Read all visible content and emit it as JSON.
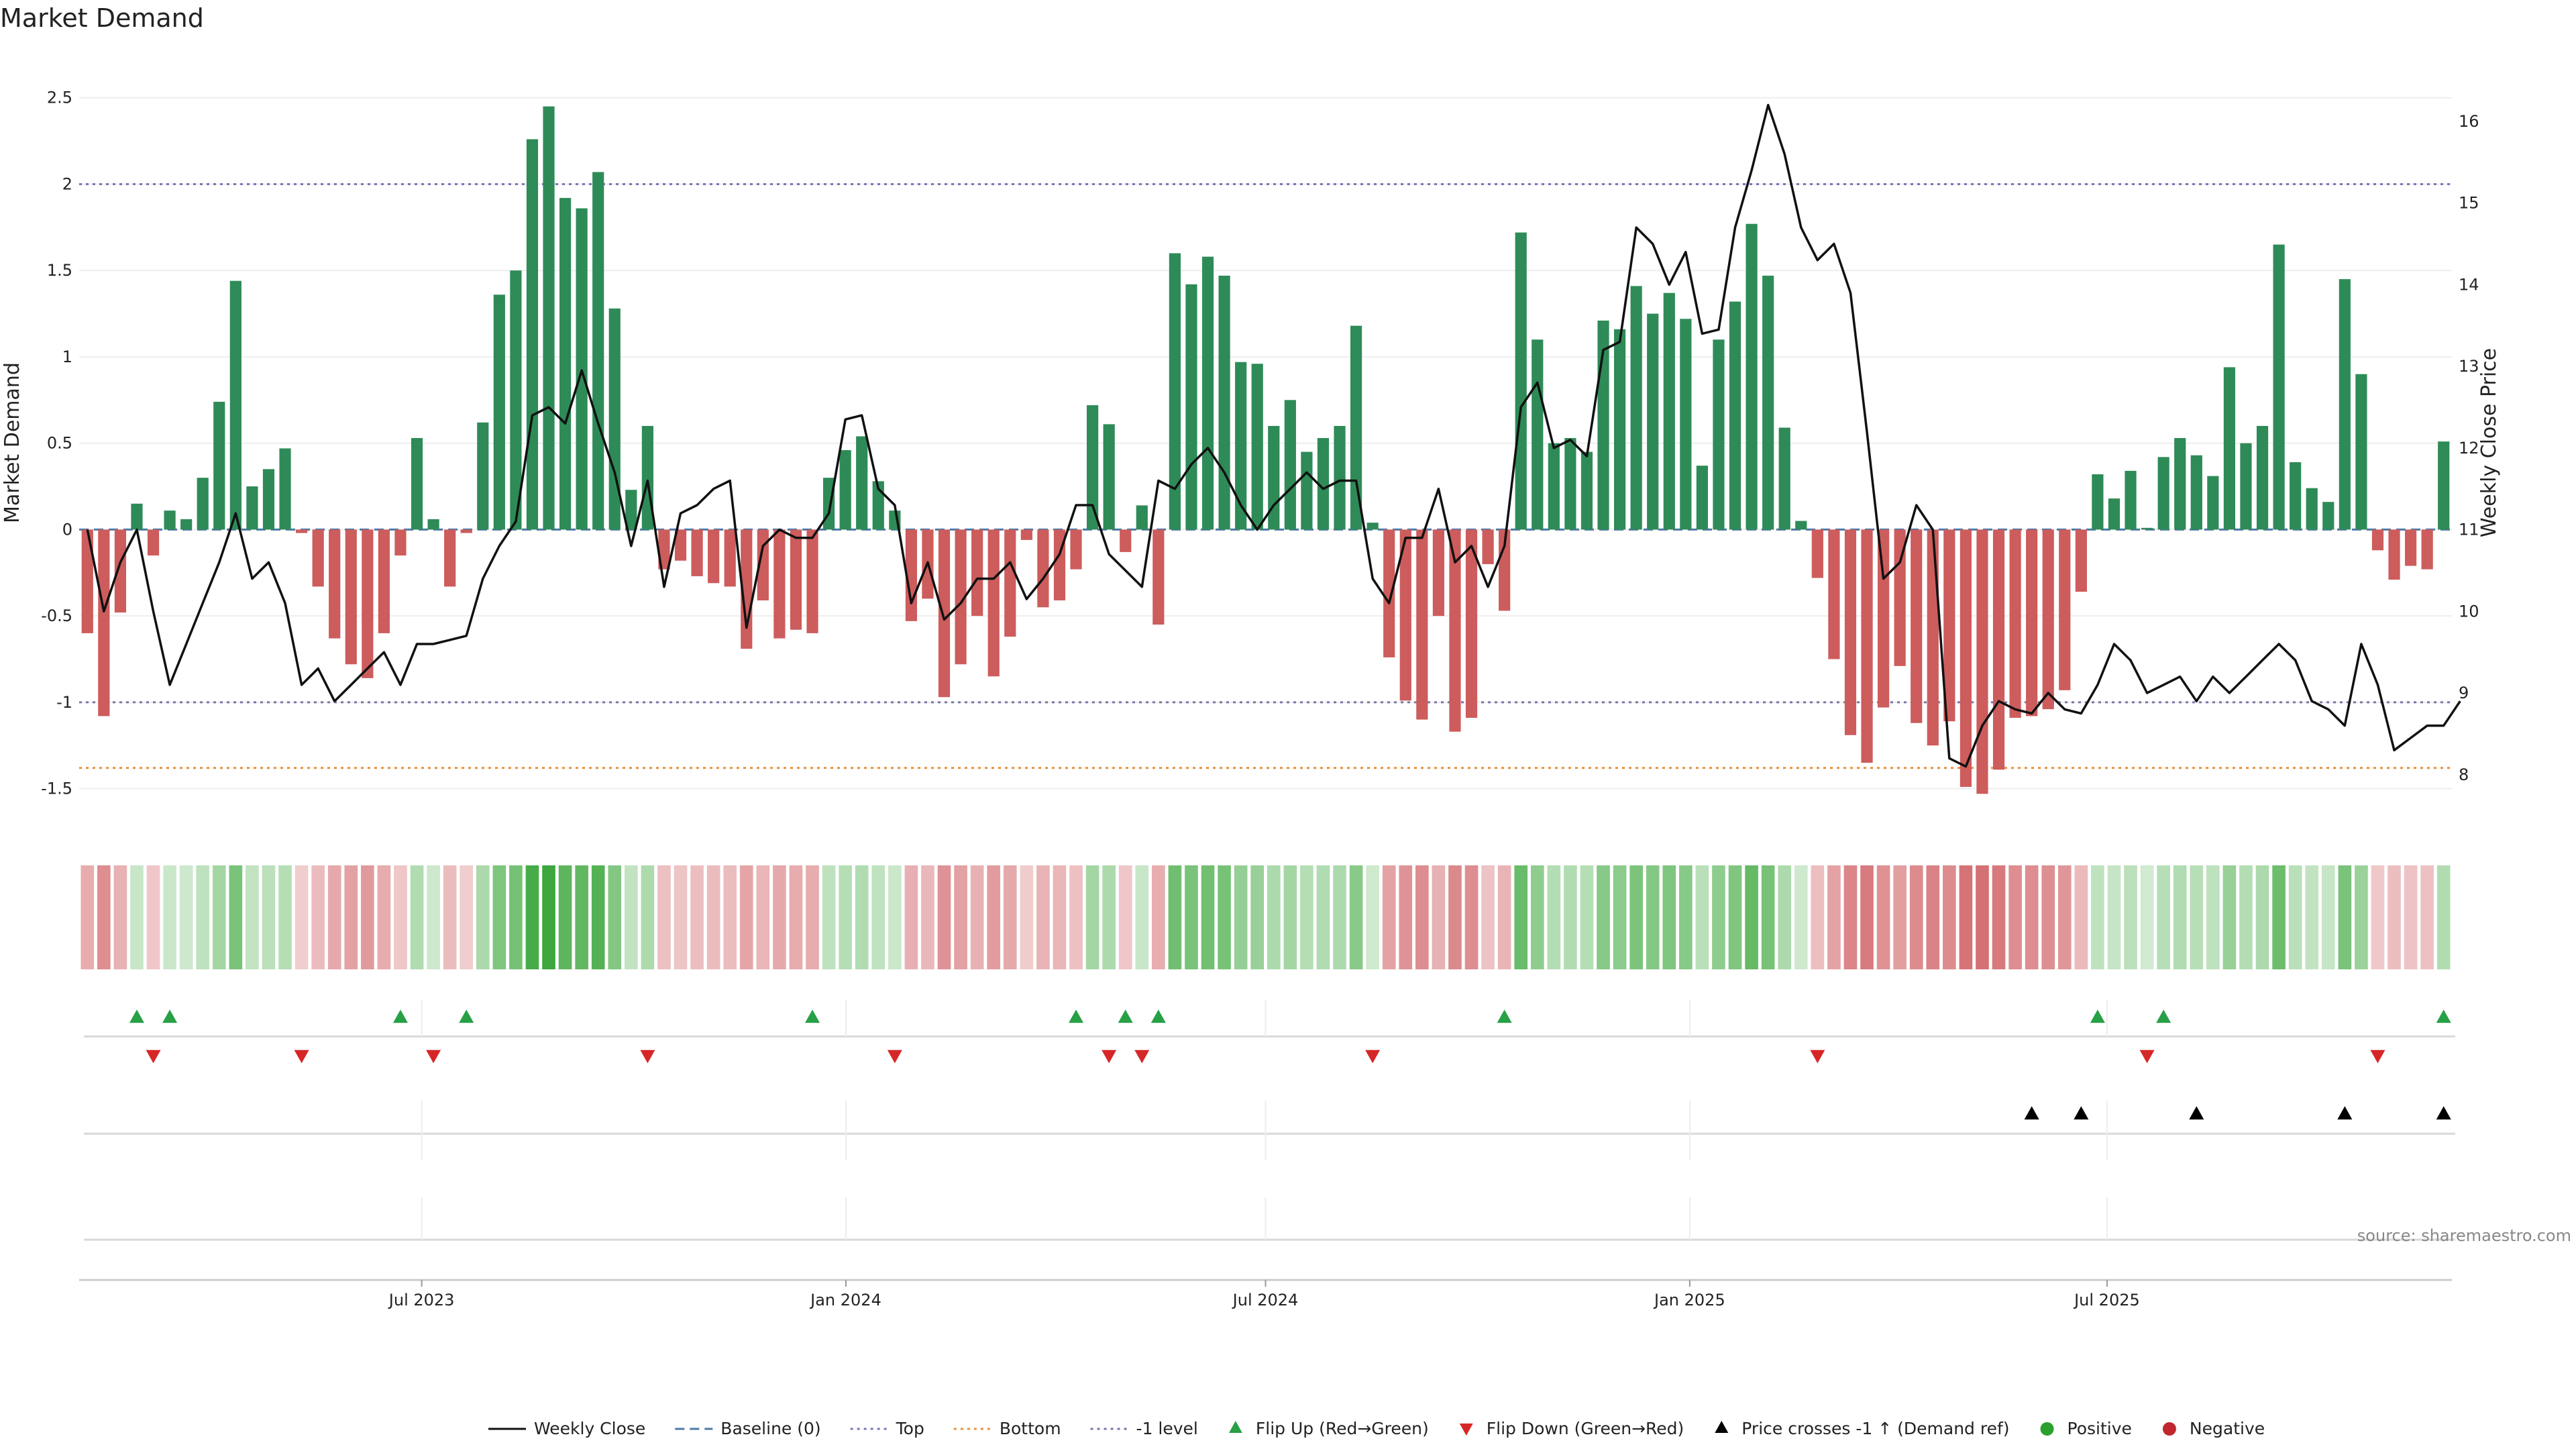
{
  "chart_data": {
    "type": "bar",
    "title": "Market Demand",
    "ylabel": "Market Demand",
    "y2label": "Weekly Close Price",
    "ylim": [
      -1.75,
      2.6
    ],
    "y2lim": [
      7.3,
      16.5
    ],
    "yticks": [
      -1.5,
      -1,
      -0.5,
      0,
      0.5,
      1,
      1.5,
      2,
      2.5
    ],
    "y2ticks": [
      8,
      9,
      10,
      11,
      12,
      13,
      14,
      15,
      16
    ],
    "levels": {
      "top": 2.0,
      "bottom": -1.38,
      "minus_one": -1.0,
      "baseline": 0
    },
    "x_start": "2023-02-06",
    "x_end": "2025-11-24",
    "xticks": [
      {
        "date": "2023-07-01",
        "label": "Jul 2023"
      },
      {
        "date": "2024-01-01",
        "label": "Jan 2024"
      },
      {
        "date": "2024-07-01",
        "label": "Jul 2024"
      },
      {
        "date": "2025-01-01",
        "label": "Jan 2025"
      },
      {
        "date": "2025-07-01",
        "label": "Jul 2025"
      }
    ],
    "demand": [
      -0.6,
      -1.08,
      -0.48,
      0.15,
      -0.15,
      0.11,
      0.06,
      0.3,
      0.74,
      1.44,
      0.25,
      0.35,
      0.47,
      -0.02,
      -0.33,
      -0.63,
      -0.78,
      -0.86,
      -0.6,
      -0.15,
      0.53,
      0.06,
      -0.33,
      -0.02,
      0.62,
      1.36,
      1.5,
      2.26,
      2.45,
      1.92,
      1.86,
      2.07,
      1.28,
      0.23,
      0.6,
      -0.23,
      -0.18,
      -0.27,
      -0.31,
      -0.33,
      -0.69,
      -0.41,
      -0.63,
      -0.58,
      -0.6,
      0.3,
      0.46,
      0.54,
      0.28,
      0.11,
      -0.53,
      -0.4,
      -0.97,
      -0.78,
      -0.5,
      -0.85,
      -0.62,
      -0.06,
      -0.45,
      -0.41,
      -0.23,
      0.72,
      0.61,
      -0.13,
      0.14,
      -0.55,
      1.6,
      1.42,
      1.58,
      1.47,
      0.97,
      0.96,
      0.6,
      0.75,
      0.45,
      0.53,
      0.6,
      1.18,
      0.04,
      -0.74,
      -0.99,
      -1.1,
      -0.5,
      -1.17,
      -1.09,
      -0.2,
      -0.47,
      1.72,
      1.1,
      0.5,
      0.53,
      0.45,
      1.21,
      1.16,
      1.41,
      1.25,
      1.37,
      1.22,
      0.37,
      1.1,
      1.32,
      1.77,
      1.47,
      0.59,
      0.05,
      -0.28,
      -0.75,
      -1.19,
      -1.35,
      -1.03,
      -0.79,
      -1.12,
      -1.25,
      -1.11,
      -1.49,
      -1.53,
      -1.39,
      -1.09,
      -1.08,
      -1.04,
      -0.93,
      -0.36,
      0.32,
      0.18,
      0.34,
      0.01,
      0.42,
      0.53,
      0.43,
      0.31,
      0.94,
      0.5,
      0.6,
      1.65,
      0.39,
      0.24,
      0.16,
      1.45,
      0.9,
      -0.12,
      -0.29,
      -0.21,
      -0.23,
      0.51
    ],
    "weekly_close": [
      11.0,
      10.0,
      10.6,
      11.0,
      10.0,
      9.1,
      9.6,
      10.1,
      10.6,
      11.2,
      10.4,
      10.6,
      10.1,
      9.1,
      9.3,
      8.9,
      9.1,
      9.3,
      9.5,
      9.1,
      9.6,
      9.6,
      9.65,
      9.7,
      10.4,
      10.8,
      11.1,
      12.4,
      12.5,
      12.3,
      12.95,
      12.3,
      11.7,
      10.8,
      11.6,
      10.3,
      11.2,
      11.3,
      11.5,
      11.6,
      9.8,
      10.8,
      11.0,
      10.9,
      10.9,
      11.2,
      12.35,
      12.4,
      11.5,
      11.3,
      10.1,
      10.6,
      9.9,
      10.1,
      10.4,
      10.4,
      10.6,
      10.15,
      10.4,
      10.7,
      11.3,
      11.3,
      10.7,
      10.5,
      10.3,
      11.6,
      11.5,
      11.8,
      12.0,
      11.7,
      11.3,
      11.0,
      11.3,
      11.5,
      11.7,
      11.5,
      11.6,
      11.6,
      10.4,
      10.1,
      10.9,
      10.9,
      11.5,
      10.6,
      10.8,
      10.3,
      10.8,
      12.5,
      12.8,
      12.0,
      12.1,
      11.9,
      13.2,
      13.3,
      14.7,
      14.5,
      14.0,
      14.4,
      13.4,
      13.45,
      14.7,
      15.4,
      16.2,
      15.6,
      14.7,
      14.3,
      14.5,
      13.9,
      12.2,
      10.4,
      10.6,
      11.3,
      11.0,
      8.2,
      8.1,
      8.6,
      8.9,
      8.8,
      8.75,
      9.0,
      8.8,
      8.75,
      9.1,
      9.6,
      9.4,
      9.0,
      9.1,
      9.2,
      8.9,
      9.2,
      9.0,
      9.2,
      9.4,
      9.6,
      9.4,
      8.9,
      8.8,
      8.6,
      9.6,
      9.1,
      8.3,
      8.45,
      8.6,
      8.6,
      8.9
    ],
    "flip_up_weeks": [
      3,
      5,
      19,
      23,
      44,
      60,
      63,
      65,
      86,
      122,
      126,
      143
    ],
    "flip_down_weeks": [
      4,
      13,
      21,
      34,
      49,
      62,
      64,
      78,
      105,
      125,
      139
    ],
    "price_cross_weeks": [
      118,
      121,
      128,
      137,
      143
    ],
    "source": "source: sharemaestro.com",
    "legend": [
      {
        "key": "weekly_close",
        "label": "Weekly Close",
        "color": "#111111",
        "style": "solid"
      },
      {
        "key": "baseline",
        "label": "Baseline (0)",
        "color": "#4c78a8",
        "style": "dashed"
      },
      {
        "key": "top",
        "label": "Top",
        "color": "#7777bb",
        "style": "dotted"
      },
      {
        "key": "bottom",
        "label": "Bottom",
        "color": "#e8913a",
        "style": "dotted"
      },
      {
        "key": "minus_one",
        "label": "-1 level",
        "color": "#7777aa",
        "style": "dotted"
      },
      {
        "key": "flip_up",
        "label": "Flip Up (Red→Green)",
        "color": "#27a046",
        "style": "triangle-up"
      },
      {
        "key": "flip_down",
        "label": "Flip Down (Green→Red)",
        "color": "#d62728",
        "style": "triangle-down"
      },
      {
        "key": "price_cross",
        "label": "Price crosses -1 ↑ (Demand ref)",
        "color": "#000000",
        "style": "triangle-up"
      },
      {
        "key": "positive",
        "label": "Positive",
        "color": "#2ca02c",
        "style": "dot"
      },
      {
        "key": "negative",
        "label": "Negative",
        "color": "#c0282d",
        "style": "dot"
      }
    ],
    "colors": {
      "positive_bar": "#2e8b57",
      "negative_bar": "#cd5c5c",
      "heat_pos": "#2ca02c",
      "heat_neg": "#c0282d",
      "grid": "#eeeeee"
    }
  }
}
